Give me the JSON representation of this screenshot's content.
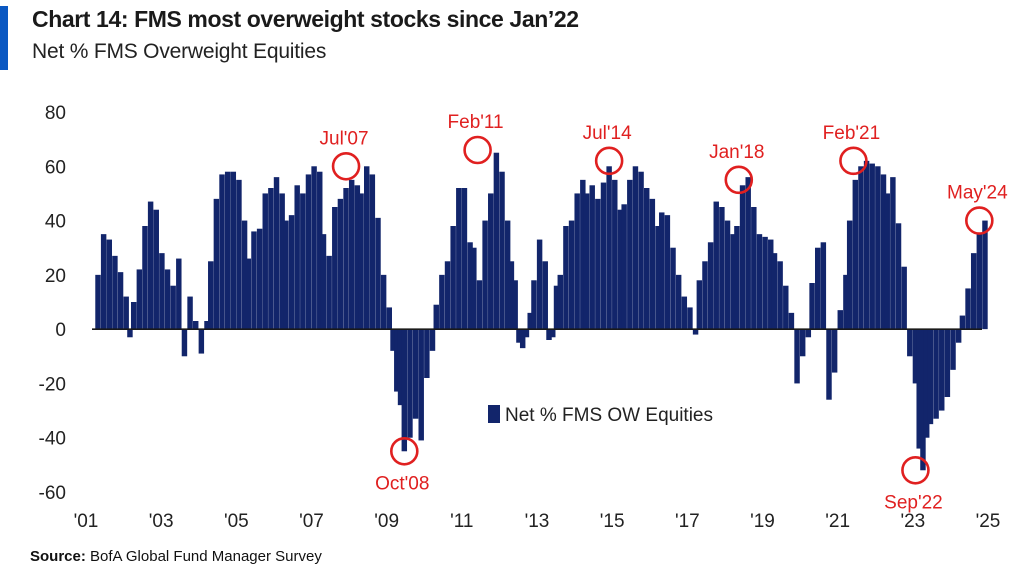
{
  "header": {
    "title": "Chart 14: FMS most overweight stocks since Jan’22",
    "subtitle": "Net % FMS Overweight Equities"
  },
  "footer": {
    "source_label": "Source:",
    "source_text": " BofA Global Fund Manager Survey"
  },
  "colors": {
    "accent": "#0a58c2",
    "bars": "#12256b",
    "annotation": "#e02020"
  },
  "chart_data": {
    "type": "bar",
    "title": "Chart 14: FMS most overweight stocks since Jan’22",
    "subtitle": "Net % FMS Overweight Equities",
    "xlabel": "",
    "ylabel": "",
    "xlim": [
      2001,
      2025
    ],
    "ylim": [
      -60,
      80
    ],
    "y_ticks": [
      80,
      60,
      40,
      20,
      0,
      -20,
      -40,
      -60
    ],
    "x_ticks": [
      {
        "label": "'01",
        "value": 2001
      },
      {
        "label": "'03",
        "value": 2003
      },
      {
        "label": "'05",
        "value": 2005
      },
      {
        "label": "'07",
        "value": 2007
      },
      {
        "label": "'09",
        "value": 2009
      },
      {
        "label": "'11",
        "value": 2011
      },
      {
        "label": "'13",
        "value": 2013
      },
      {
        "label": "'15",
        "value": 2015
      },
      {
        "label": "'17",
        "value": 2017
      },
      {
        "label": "'19",
        "value": 2019
      },
      {
        "label": "'21",
        "value": 2021
      },
      {
        "label": "'23",
        "value": 2023
      },
      {
        "label": "'25",
        "value": 2025
      }
    ],
    "grid": false,
    "legend": {
      "position": "center",
      "entries": [
        "Net % FMS OW Equities"
      ]
    },
    "series": [
      {
        "name": "Net % FMS OW Equities",
        "points": [
          [
            2001.0,
            20
          ],
          [
            2001.15,
            35
          ],
          [
            2001.3,
            33
          ],
          [
            2001.45,
            27
          ],
          [
            2001.6,
            21
          ],
          [
            2001.75,
            12
          ],
          [
            2001.85,
            -3
          ],
          [
            2001.95,
            10
          ],
          [
            2002.1,
            22
          ],
          [
            2002.25,
            38
          ],
          [
            2002.4,
            47
          ],
          [
            2002.55,
            44
          ],
          [
            2002.7,
            28
          ],
          [
            2002.85,
            22
          ],
          [
            2003.0,
            16
          ],
          [
            2003.15,
            26
          ],
          [
            2003.3,
            -10
          ],
          [
            2003.45,
            12
          ],
          [
            2003.6,
            3
          ],
          [
            2003.75,
            -9
          ],
          [
            2003.9,
            3
          ],
          [
            2004.0,
            25
          ],
          [
            2004.15,
            48
          ],
          [
            2004.3,
            57
          ],
          [
            2004.45,
            58
          ],
          [
            2004.6,
            58
          ],
          [
            2004.75,
            55
          ],
          [
            2004.9,
            40
          ],
          [
            2005.0,
            26
          ],
          [
            2005.15,
            36
          ],
          [
            2005.3,
            37
          ],
          [
            2005.45,
            50
          ],
          [
            2005.6,
            52
          ],
          [
            2005.75,
            56
          ],
          [
            2005.9,
            50
          ],
          [
            2006.0,
            40
          ],
          [
            2006.15,
            42
          ],
          [
            2006.3,
            53
          ],
          [
            2006.45,
            50
          ],
          [
            2006.6,
            57
          ],
          [
            2006.75,
            60
          ],
          [
            2006.9,
            58
          ],
          [
            2007.0,
            35
          ],
          [
            2007.15,
            27
          ],
          [
            2007.3,
            45
          ],
          [
            2007.45,
            48
          ],
          [
            2007.6,
            52
          ],
          [
            2007.75,
            55
          ],
          [
            2007.9,
            53
          ],
          [
            2008.0,
            50
          ],
          [
            2008.15,
            60
          ],
          [
            2008.3,
            57
          ],
          [
            2008.45,
            41
          ],
          [
            2008.6,
            20
          ],
          [
            2008.75,
            8
          ],
          [
            2008.85,
            -8
          ],
          [
            2008.95,
            -23
          ],
          [
            2009.05,
            -28
          ],
          [
            2009.15,
            -45
          ],
          [
            2009.3,
            -40
          ],
          [
            2009.45,
            -33
          ],
          [
            2009.6,
            -41
          ],
          [
            2009.75,
            -18
          ],
          [
            2009.9,
            -8
          ],
          [
            2010.0,
            9
          ],
          [
            2010.15,
            20
          ],
          [
            2010.3,
            25
          ],
          [
            2010.45,
            38
          ],
          [
            2010.6,
            52
          ],
          [
            2010.75,
            52
          ],
          [
            2010.9,
            32
          ],
          [
            2011.0,
            30
          ],
          [
            2011.15,
            18
          ],
          [
            2011.3,
            40
          ],
          [
            2011.45,
            50
          ],
          [
            2011.6,
            65
          ],
          [
            2011.75,
            58
          ],
          [
            2011.9,
            40
          ],
          [
            2012.0,
            25
          ],
          [
            2012.1,
            18
          ],
          [
            2012.2,
            -5
          ],
          [
            2012.3,
            -7
          ],
          [
            2012.4,
            -3
          ],
          [
            2012.5,
            6
          ],
          [
            2012.6,
            18
          ],
          [
            2012.75,
            33
          ],
          [
            2012.9,
            25
          ],
          [
            2013.0,
            -4
          ],
          [
            2013.1,
            -3
          ],
          [
            2013.2,
            16
          ],
          [
            2013.3,
            20
          ],
          [
            2013.45,
            38
          ],
          [
            2013.6,
            40
          ],
          [
            2013.75,
            50
          ],
          [
            2013.9,
            55
          ],
          [
            2014.0,
            50
          ],
          [
            2014.15,
            53
          ],
          [
            2014.3,
            48
          ],
          [
            2014.45,
            54
          ],
          [
            2014.6,
            60
          ],
          [
            2014.75,
            55
          ],
          [
            2014.9,
            44
          ],
          [
            2015.0,
            46
          ],
          [
            2015.15,
            55
          ],
          [
            2015.3,
            60
          ],
          [
            2015.45,
            58
          ],
          [
            2015.6,
            52
          ],
          [
            2015.75,
            48
          ],
          [
            2015.9,
            38
          ],
          [
            2016.0,
            43
          ],
          [
            2016.15,
            42
          ],
          [
            2016.3,
            30
          ],
          [
            2016.45,
            20
          ],
          [
            2016.6,
            12
          ],
          [
            2016.75,
            8
          ],
          [
            2016.9,
            -2
          ],
          [
            2017.0,
            18
          ],
          [
            2017.15,
            25
          ],
          [
            2017.3,
            32
          ],
          [
            2017.45,
            47
          ],
          [
            2017.6,
            45
          ],
          [
            2017.75,
            40
          ],
          [
            2017.9,
            35
          ],
          [
            2018.0,
            38
          ],
          [
            2018.15,
            53
          ],
          [
            2018.3,
            56
          ],
          [
            2018.45,
            45
          ],
          [
            2018.6,
            35
          ],
          [
            2018.75,
            34
          ],
          [
            2018.9,
            33
          ],
          [
            2019.0,
            28
          ],
          [
            2019.15,
            25
          ],
          [
            2019.3,
            16
          ],
          [
            2019.45,
            6
          ],
          [
            2019.6,
            -20
          ],
          [
            2019.75,
            -10
          ],
          [
            2019.9,
            -3
          ],
          [
            2020.0,
            17
          ],
          [
            2020.15,
            30
          ],
          [
            2020.3,
            32
          ],
          [
            2020.45,
            -26
          ],
          [
            2020.6,
            -16
          ],
          [
            2020.75,
            7
          ],
          [
            2020.9,
            20
          ],
          [
            2021.0,
            40
          ],
          [
            2021.15,
            55
          ],
          [
            2021.3,
            60
          ],
          [
            2021.45,
            62
          ],
          [
            2021.6,
            61
          ],
          [
            2021.75,
            60
          ],
          [
            2021.9,
            57
          ],
          [
            2022.0,
            50
          ],
          [
            2022.15,
            56
          ],
          [
            2022.3,
            39
          ],
          [
            2022.45,
            23
          ],
          [
            2022.6,
            -10
          ],
          [
            2022.75,
            -20
          ],
          [
            2022.85,
            -44
          ],
          [
            2022.95,
            -52
          ],
          [
            2023.05,
            -40
          ],
          [
            2023.15,
            -35
          ],
          [
            2023.3,
            -33
          ],
          [
            2023.45,
            -30
          ],
          [
            2023.6,
            -25
          ],
          [
            2023.75,
            -15
          ],
          [
            2023.9,
            -5
          ],
          [
            2024.0,
            5
          ],
          [
            2024.15,
            15
          ],
          [
            2024.3,
            28
          ],
          [
            2024.45,
            35
          ],
          [
            2024.6,
            40
          ]
        ]
      }
    ],
    "annotations": [
      {
        "label": "Jul'07",
        "x": 2007.6,
        "y": 60,
        "label_position": "above"
      },
      {
        "label": "Oct'08",
        "x": 2009.15,
        "y": -45,
        "label_position": "below"
      },
      {
        "label": "Feb'11",
        "x": 2011.1,
        "y": 66,
        "label_position": "above"
      },
      {
        "label": "Jul'14",
        "x": 2014.6,
        "y": 62,
        "label_position": "above"
      },
      {
        "label": "Jan'18",
        "x": 2018.05,
        "y": 55,
        "label_position": "above"
      },
      {
        "label": "Feb'21",
        "x": 2021.1,
        "y": 62,
        "label_position": "above"
      },
      {
        "label": "Sep'22",
        "x": 2022.75,
        "y": -52,
        "label_position": "below"
      },
      {
        "label": "May'24",
        "x": 2024.45,
        "y": 40,
        "label_position": "above"
      }
    ]
  }
}
